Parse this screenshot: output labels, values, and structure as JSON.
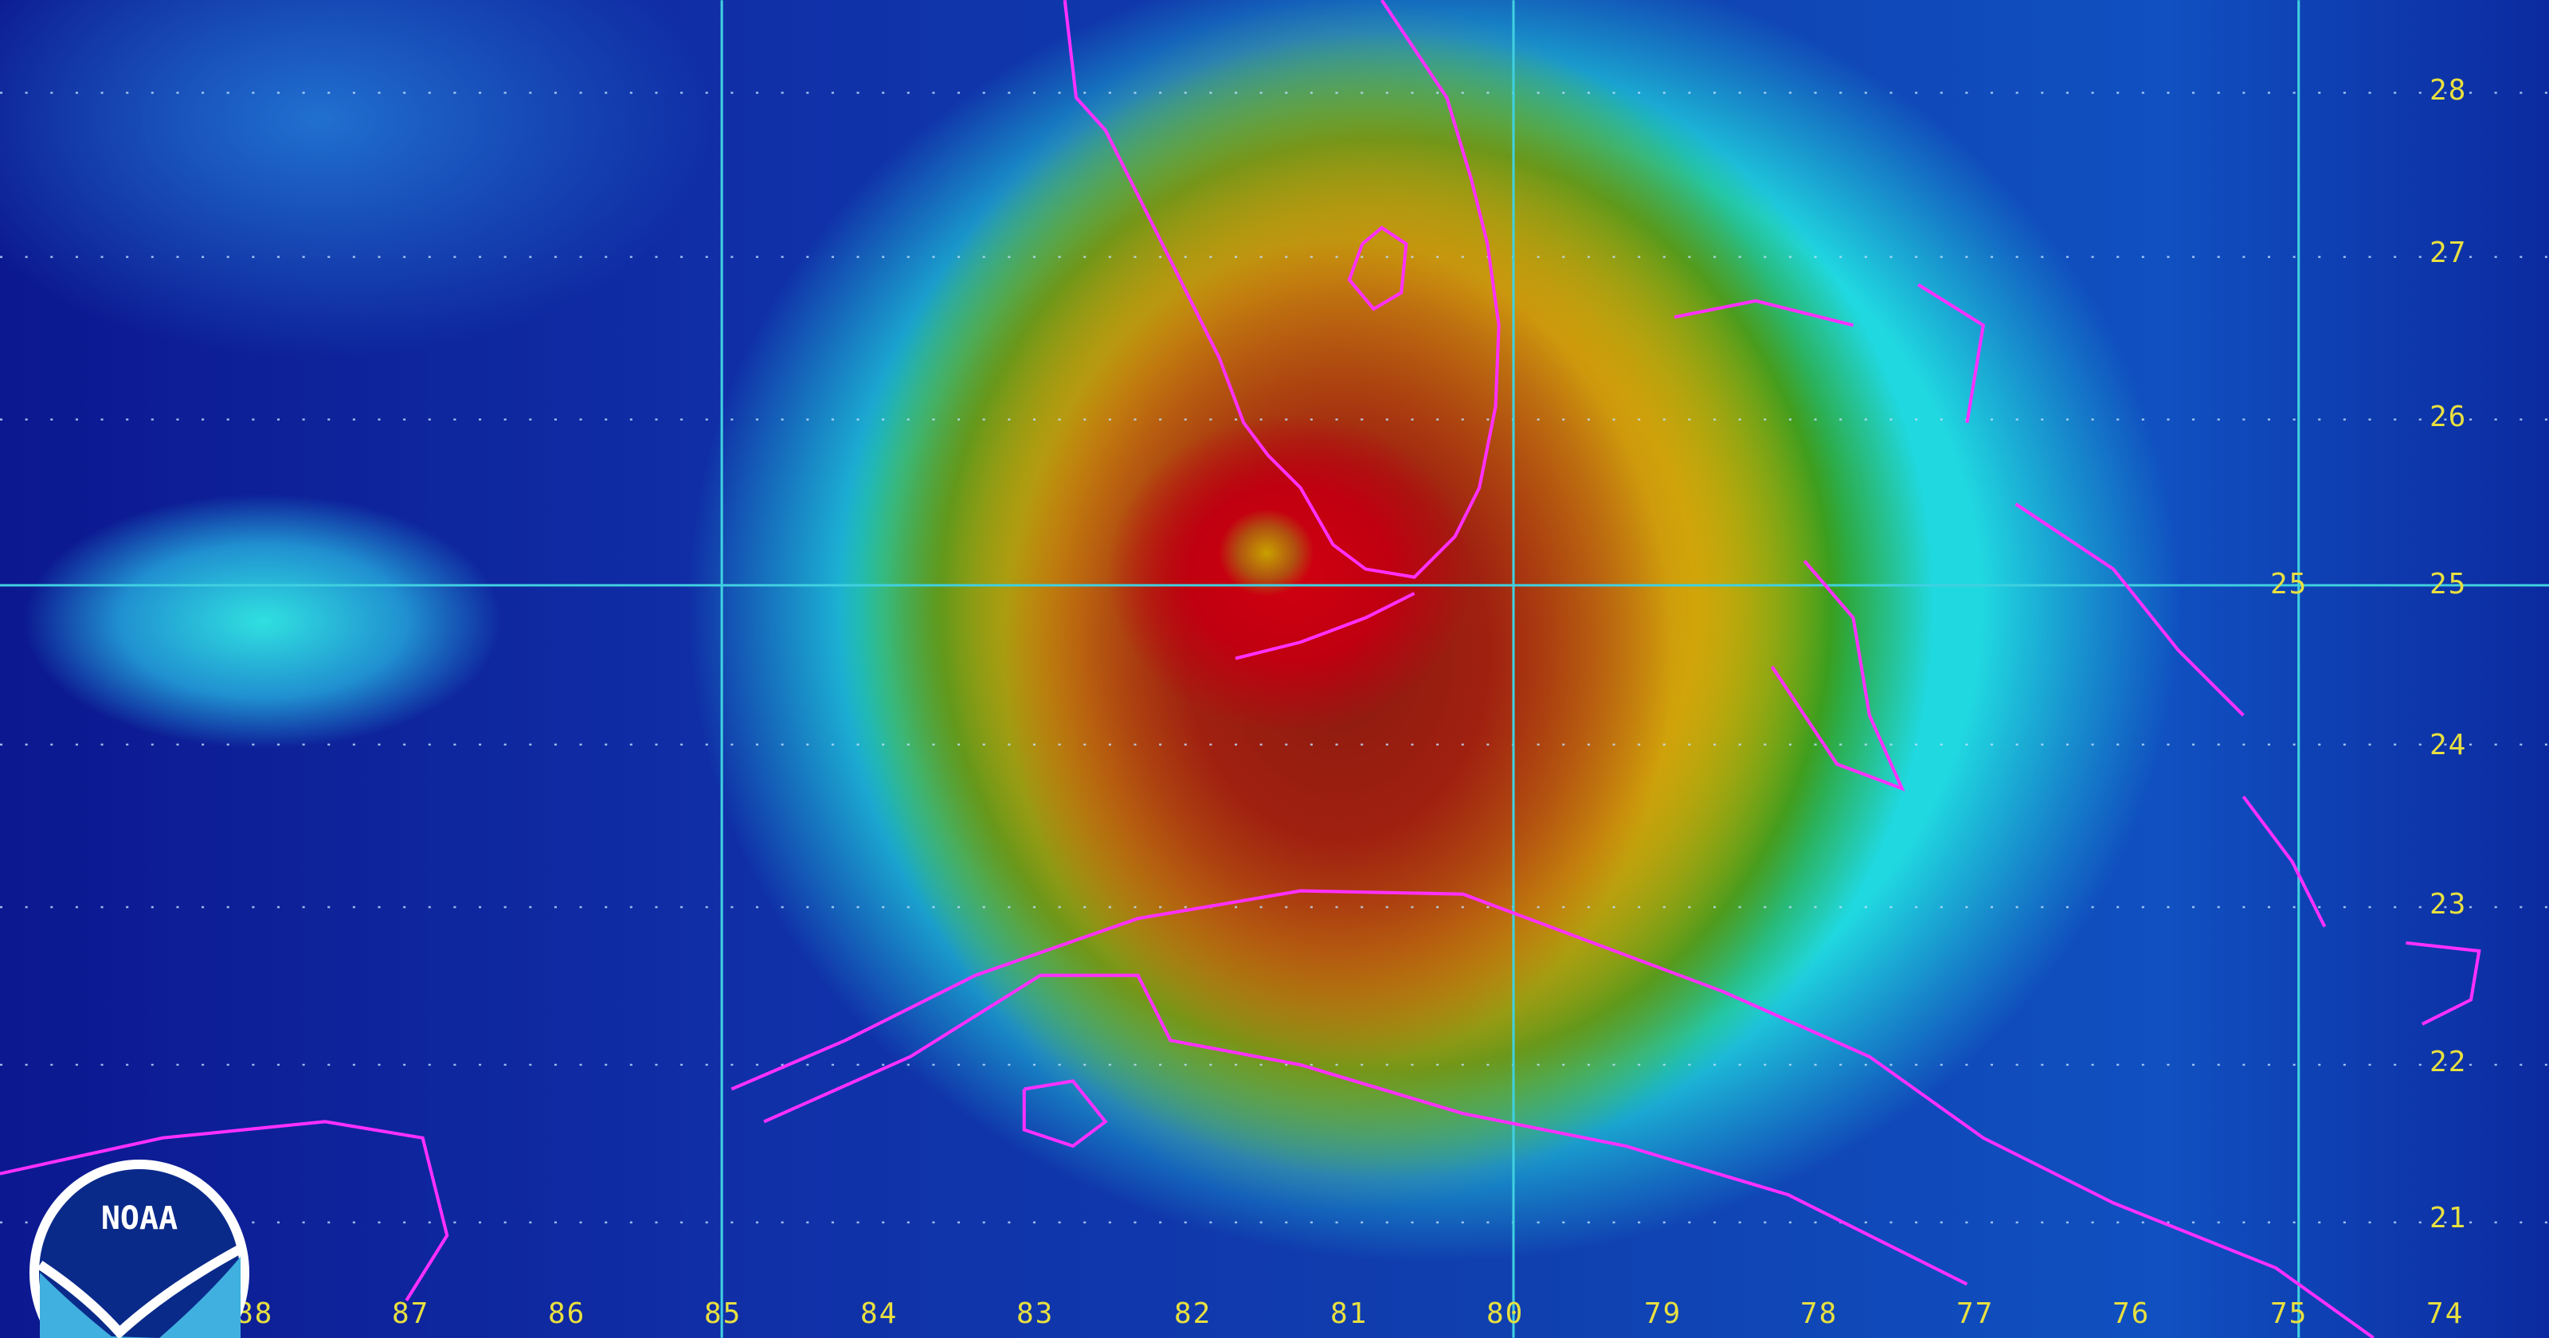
{
  "map": {
    "longitude_labels": [
      "88",
      "87",
      "86",
      "85",
      "84",
      "83",
      "82",
      "81",
      "80",
      "79",
      "78",
      "77",
      "76",
      "75",
      "74"
    ],
    "latitude_labels": [
      "28",
      "27",
      "26",
      "25",
      "24",
      "23",
      "22",
      "21"
    ],
    "extra_latitude_label": "25",
    "coastline_color": "#ff30ff",
    "gridline_color": "#40d0e0"
  },
  "logo": {
    "text": "NOAA"
  }
}
